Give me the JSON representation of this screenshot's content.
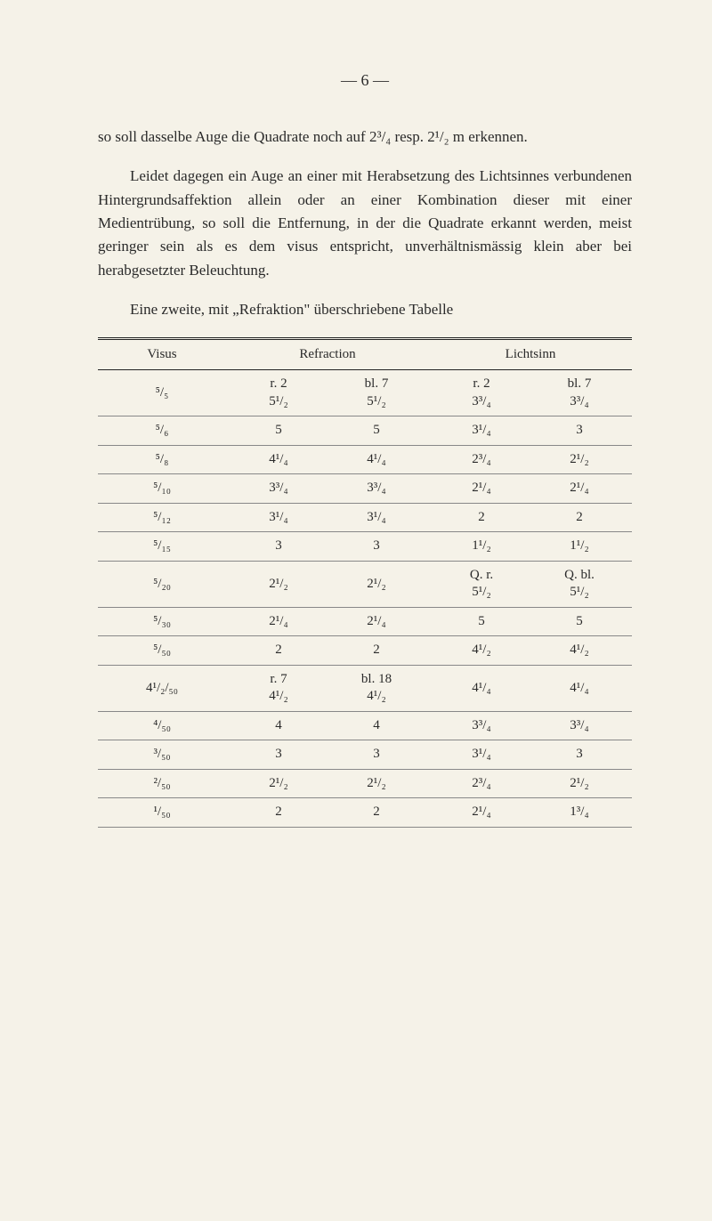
{
  "page_number": "—  6  —",
  "para1": "so soll dasselbe Auge die Quadrate noch auf 2³/₄ resp. 2¹/₂ m erkennen.",
  "para2": "Leidet dagegen ein Auge an einer mit Herabsetzung des Lichtsinnes verbundenen Hintergrundsaffektion allein oder an einer Kombination dieser mit einer Medientrübung, so soll die Entfernung, in der die Quadrate erkannt werden, meist geringer sein als es dem visus entspricht, unverhältnismässig klein aber bei herabgesetzter Beleuchtung.",
  "para3": "Eine zweite, mit „Refraktion\" überschriebene Tabelle",
  "headers": {
    "c1": "Visus",
    "c2": "Refraction",
    "c3": "Lichtsinn"
  },
  "rows": [
    {
      "v": "⁵/₅",
      "r_top_a": "r. 2",
      "r_top_b": "bl. 7",
      "r_a": "5¹/₂",
      "r_b": "5¹/₂",
      "l_top_a": "r. 2",
      "l_top_b": "bl. 7",
      "l_a": "3³/₄",
      "l_b": "3³/₄",
      "has_top": true
    },
    {
      "v": "⁵/₆",
      "r_a": "5",
      "r_b": "5",
      "l_a": "3¹/₄",
      "l_b": "3"
    },
    {
      "v": "⁵/₈",
      "r_a": "4¹/₄",
      "r_b": "4¹/₄",
      "l_a": "2³/₄",
      "l_b": "2¹/₂"
    },
    {
      "v": "⁵/₁₀",
      "r_a": "3³/₄",
      "r_b": "3³/₄",
      "l_a": "2¹/₄",
      "l_b": "2¹/₄"
    },
    {
      "v": "⁵/₁₂",
      "r_a": "3¹/₄",
      "r_b": "3¹/₄",
      "l_a": "2",
      "l_b": "2"
    },
    {
      "v": "⁵/₁₅",
      "r_a": "3",
      "r_b": "3",
      "l_a": "1¹/₂",
      "l_b": "1¹/₂"
    },
    {
      "v": "⁵/₂₀",
      "r_a": "2¹/₂",
      "r_b": "2¹/₂",
      "l_top_a": "Q. r.",
      "l_top_b": "Q. bl.",
      "l_a": "5¹/₂",
      "l_b": "5¹/₂",
      "licht_top": true
    },
    {
      "v": "⁵/₃₀",
      "r_a": "2¹/₄",
      "r_b": "2¹/₄",
      "l_a": "5",
      "l_b": "5"
    },
    {
      "v": "⁵/₅₀",
      "r_a": "2",
      "r_b": "2",
      "l_a": "4¹/₂",
      "l_b": "4¹/₂"
    },
    {
      "v": "4¹/₂/₅₀",
      "r_top_a": "r. 7",
      "r_top_b": "bl. 18",
      "r_a": "4¹/₂",
      "r_b": "4¹/₂",
      "l_a": "4¹/₄",
      "l_b": "4¹/₄",
      "ref_top": true
    },
    {
      "v": "⁴/₅₀",
      "r_a": "4",
      "r_b": "4",
      "l_a": "3³/₄",
      "l_b": "3³/₄"
    },
    {
      "v": "³/₅₀",
      "r_a": "3",
      "r_b": "3",
      "l_a": "3¹/₄",
      "l_b": "3"
    },
    {
      "v": "²/₅₀",
      "r_a": "2¹/₂",
      "r_b": "2¹/₂",
      "l_a": "2³/₄",
      "l_b": "2¹/₂"
    },
    {
      "v": "¹/₅₀",
      "r_a": "2",
      "r_b": "2",
      "l_a": "2¹/₄",
      "l_b": "1³/₄"
    }
  ]
}
